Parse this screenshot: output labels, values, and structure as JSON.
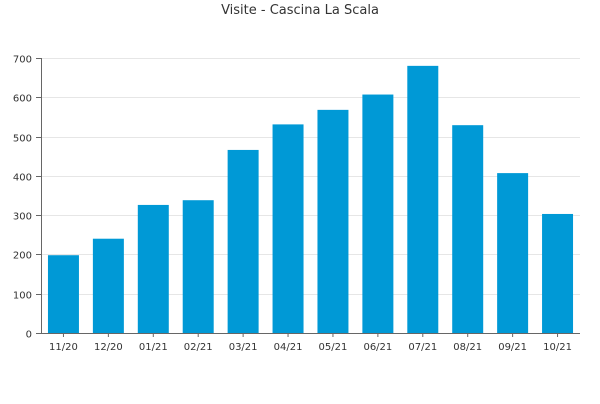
{
  "chart_data": {
    "type": "bar",
    "title": "Visite - Cascina La Scala",
    "xlabel": "",
    "ylabel": "",
    "categories": [
      "11/20",
      "12/20",
      "01/21",
      "02/21",
      "03/21",
      "04/21",
      "05/21",
      "06/21",
      "07/21",
      "08/21",
      "09/21",
      "10/21"
    ],
    "values": [
      198,
      240,
      326,
      338,
      466,
      531,
      568,
      607,
      680,
      529,
      407,
      303
    ],
    "ylim": [
      0,
      700
    ],
    "yticks": [
      0,
      100,
      200,
      300,
      400,
      500,
      600,
      700
    ],
    "grid": true,
    "legend": "none",
    "bar_color": "#0099d6",
    "grid_color": "#e6e6e6",
    "axis_color": "#666666",
    "text_color": "#333333"
  }
}
